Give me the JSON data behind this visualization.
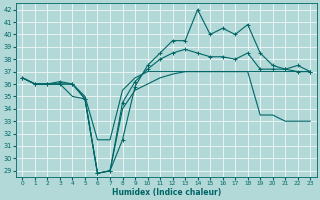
{
  "xlabel": "Humidex (Indice chaleur)",
  "xlim": [
    -0.5,
    23.5
  ],
  "ylim": [
    28.5,
    42.5
  ],
  "yticks": [
    29,
    30,
    31,
    32,
    33,
    34,
    35,
    36,
    37,
    38,
    39,
    40,
    41,
    42
  ],
  "xticks": [
    0,
    1,
    2,
    3,
    4,
    5,
    6,
    7,
    8,
    9,
    10,
    11,
    12,
    13,
    14,
    15,
    16,
    17,
    18,
    19,
    20,
    21,
    22,
    23
  ],
  "bg_color": "#b2d8d8",
  "line_color": "#006666",
  "grid_color": "#ffffff",
  "line1_y": [
    36.5,
    36.0,
    36.0,
    36.0,
    36.0,
    35.0,
    31.5,
    31.5,
    35.5,
    36.5,
    37.0,
    37.0,
    37.0,
    37.0,
    37.0,
    37.0,
    37.0,
    37.0,
    37.0,
    37.0,
    37.0,
    37.0,
    37.0,
    37.0
  ],
  "line2_y": [
    36.5,
    36.0,
    36.0,
    36.2,
    36.0,
    34.8,
    28.8,
    29.0,
    31.5,
    35.8,
    37.5,
    38.5,
    39.5,
    39.5,
    42.0,
    40.0,
    40.5,
    40.0,
    40.8,
    38.5,
    37.5,
    37.2,
    37.0,
    37.0
  ],
  "line3_y": [
    36.5,
    36.0,
    36.0,
    36.0,
    36.0,
    34.8,
    28.8,
    29.0,
    34.5,
    36.2,
    37.2,
    38.0,
    38.5,
    38.8,
    38.5,
    38.2,
    38.2,
    38.0,
    38.5,
    37.2,
    37.2,
    37.2,
    37.5,
    37.0
  ],
  "line4_y": [
    36.5,
    36.0,
    36.0,
    36.0,
    35.0,
    34.8,
    28.8,
    29.0,
    34.0,
    35.5,
    36.0,
    36.5,
    36.8,
    37.0,
    37.0,
    37.0,
    37.0,
    37.0,
    37.0,
    33.5,
    33.5,
    33.0,
    33.0,
    33.0
  ],
  "linewidth": 0.8,
  "markersize": 3.0
}
